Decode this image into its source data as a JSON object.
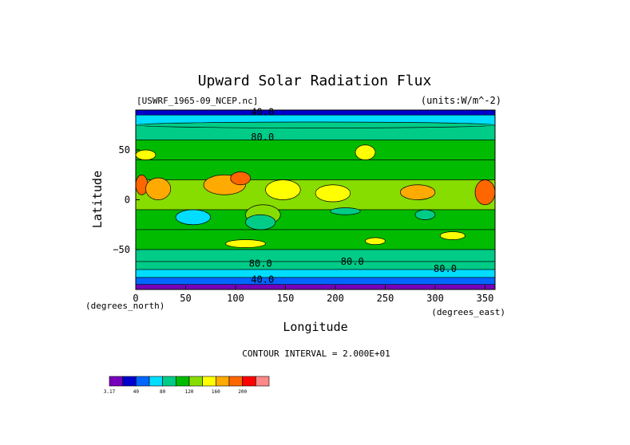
{
  "chart_data": {
    "type": "heatmap",
    "title": "Upward Solar Radiation Flux",
    "source_label": "[USWRF_1965-09_NCEP.nc]",
    "units_label": "(units:W/m^-2)",
    "xlabel": "Longitude",
    "ylabel": "Latitude",
    "x_unit_label": "(degrees_east)",
    "y_unit_label": "(degrees_north)",
    "xlim": [
      0,
      360
    ],
    "ylim": [
      -90,
      90
    ],
    "x_ticks": [
      0,
      50,
      100,
      150,
      200,
      250,
      300,
      350
    ],
    "y_ticks": [
      -50,
      0,
      50
    ],
    "contour_interval_text": "CONTOUR INTERVAL = 2.000E+01",
    "contour_labels": [
      {
        "text": "40.0",
        "lon": 127,
        "lat": 88
      },
      {
        "text": "80.0",
        "lon": 127,
        "lat": 63
      },
      {
        "text": "80.0",
        "lon": 125,
        "lat": -64
      },
      {
        "text": "80.0",
        "lon": 217,
        "lat": -62
      },
      {
        "text": "80.0",
        "lon": 310,
        "lat": -69
      },
      {
        "text": "40.0",
        "lon": 127,
        "lat": -80
      }
    ],
    "colorbar": {
      "levels": [
        "3.17",
        "20",
        "40",
        "60",
        "80",
        "100",
        "120",
        "140",
        "160",
        "180",
        "200",
        "220"
      ],
      "tick_labels": [
        {
          "text": "3.17",
          "index": 0
        },
        {
          "text": "40",
          "index": 2
        },
        {
          "text": "80",
          "index": 4
        },
        {
          "text": "120",
          "index": 6
        },
        {
          "text": "160",
          "index": 8
        },
        {
          "text": "200",
          "index": 10
        }
      ],
      "colors": [
        "#7700bb",
        "#0000cc",
        "#0066ff",
        "#00ddff",
        "#00cc88",
        "#00bb00",
        "#88dd00",
        "#ffff00",
        "#ffaa00",
        "#ff6600",
        "#ff0000",
        "#ff8888"
      ]
    },
    "latitude_bands": [
      {
        "lat_from": 90,
        "lat_to": 85,
        "value": 30
      },
      {
        "lat_from": 85,
        "lat_to": 75,
        "value": 70
      },
      {
        "lat_from": 75,
        "lat_to": 60,
        "value": 90
      },
      {
        "lat_from": 60,
        "lat_to": 40,
        "value": 105
      },
      {
        "lat_from": 40,
        "lat_to": 20,
        "value": 110
      },
      {
        "lat_from": 20,
        "lat_to": -10,
        "value": 130
      },
      {
        "lat_from": -10,
        "lat_to": -30,
        "value": 105
      },
      {
        "lat_from": -30,
        "lat_to": -50,
        "value": 100
      },
      {
        "lat_from": -50,
        "lat_to": -62,
        "value": 95
      },
      {
        "lat_from": -62,
        "lat_to": -70,
        "value": 85
      },
      {
        "lat_from": -70,
        "lat_to": -78,
        "value": 70
      },
      {
        "lat_from": -78,
        "lat_to": -85,
        "value": 50
      },
      {
        "lat_from": -85,
        "lat_to": -90,
        "value": 10
      }
    ],
    "regions": [
      {
        "lon": [
          0,
          12
        ],
        "lat": [
          25,
          5
        ],
        "value": 190
      },
      {
        "lon": [
          10,
          35
        ],
        "lat": [
          22,
          0
        ],
        "value": 170
      },
      {
        "lon": [
          68,
          110
        ],
        "lat": [
          25,
          5
        ],
        "value": 170
      },
      {
        "lon": [
          95,
          115
        ],
        "lat": [
          28,
          15
        ],
        "value": 195
      },
      {
        "lon": [
          130,
          165
        ],
        "lat": [
          20,
          0
        ],
        "value": 150
      },
      {
        "lon": [
          180,
          215
        ],
        "lat": [
          15,
          -2
        ],
        "value": 140
      },
      {
        "lon": [
          265,
          300
        ],
        "lat": [
          15,
          0
        ],
        "value": 165
      },
      {
        "lon": [
          340,
          360
        ],
        "lat": [
          20,
          -5
        ],
        "value": 190
      },
      {
        "lon": [
          110,
          145
        ],
        "lat": [
          -5,
          -25
        ],
        "value": 125
      },
      {
        "lon": [
          40,
          75
        ],
        "lat": [
          -10,
          -25
        ],
        "value": 75
      },
      {
        "lon": [
          110,
          140
        ],
        "lat": [
          -15,
          -30
        ],
        "value": 80
      },
      {
        "lon": [
          195,
          225
        ],
        "lat": [
          -8,
          -15
        ],
        "value": 95
      },
      {
        "lon": [
          280,
          300
        ],
        "lat": [
          -10,
          -20
        ],
        "value": 80
      },
      {
        "lon": [
          0,
          20
        ],
        "lat": [
          50,
          40
        ],
        "value": 140
      },
      {
        "lon": [
          220,
          240
        ],
        "lat": [
          55,
          40
        ],
        "value": 150
      },
      {
        "lon": [
          90,
          130
        ],
        "lat": [
          -40,
          -48
        ],
        "value": 140
      },
      {
        "lon": [
          230,
          250
        ],
        "lat": [
          -38,
          -45
        ],
        "value": 150
      },
      {
        "lon": [
          305,
          330
        ],
        "lat": [
          -32,
          -40
        ],
        "value": 150
      },
      {
        "lon": [
          0,
          360
        ],
        "lat": [
          78,
          72
        ],
        "value": 80
      }
    ]
  }
}
